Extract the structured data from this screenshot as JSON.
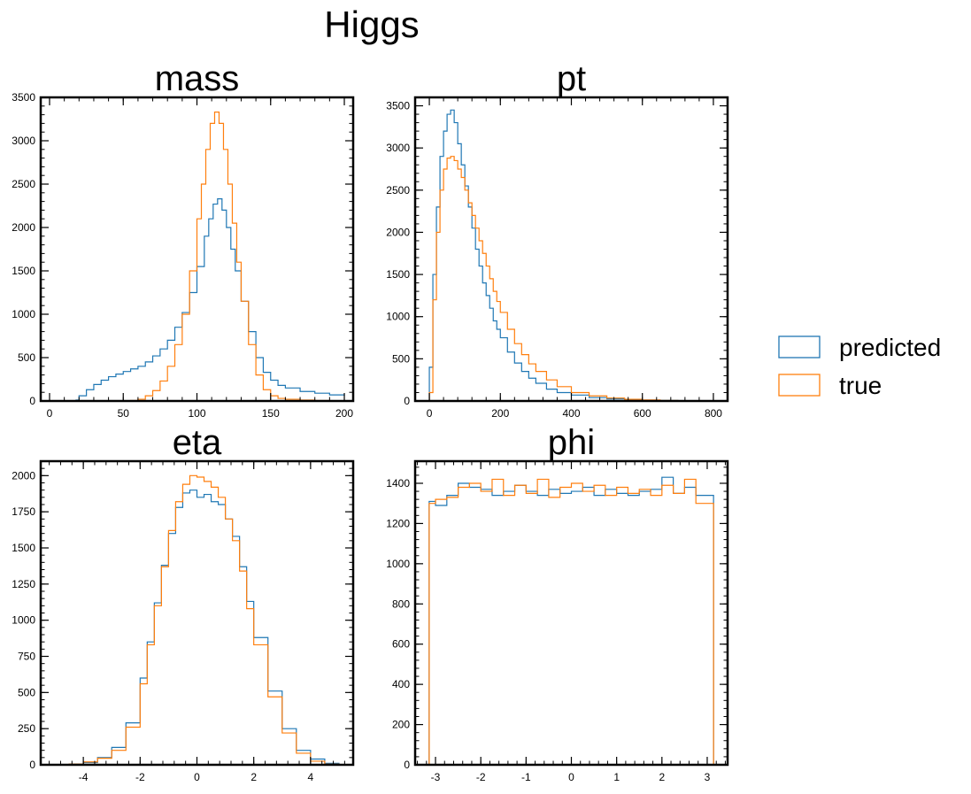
{
  "figure": {
    "title": "Higgs"
  },
  "legend": {
    "placement": "right",
    "entries": [
      {
        "label": "predicted",
        "color": "#1f77b4"
      },
      {
        "label": "true",
        "color": "#ff7f0e"
      }
    ]
  },
  "chart_data": [
    {
      "type": "histogram",
      "title": "mass",
      "xlim": [
        -6,
        206
      ],
      "ylim": [
        0,
        3500
      ],
      "xticks": [
        0,
        50,
        100,
        150,
        200
      ],
      "xtick_labels": [
        "0",
        "50",
        "100",
        "150",
        "200"
      ],
      "yticks": [
        0,
        500,
        1000,
        1500,
        2000,
        2500,
        3000,
        3500
      ],
      "ytick_labels": [
        "0",
        "500",
        "1000",
        "1500",
        "2000",
        "2500",
        "3000",
        "3500"
      ],
      "series": [
        {
          "name": "predicted",
          "color": "#1f77b4",
          "x": [
            0,
            10,
            18,
            20,
            25,
            30,
            35,
            40,
            45,
            50,
            55,
            60,
            65,
            70,
            75,
            80,
            85,
            90,
            95,
            100,
            105,
            108,
            111,
            114,
            117,
            120,
            123,
            126,
            130,
            135,
            140,
            145,
            150,
            155,
            160,
            170,
            180,
            190,
            200
          ],
          "y": [
            0,
            0,
            10,
            60,
            130,
            190,
            240,
            280,
            310,
            340,
            370,
            400,
            450,
            520,
            600,
            700,
            850,
            1020,
            1250,
            1550,
            1900,
            2100,
            2270,
            2330,
            2200,
            2000,
            1750,
            1500,
            1150,
            800,
            500,
            330,
            240,
            180,
            150,
            110,
            90,
            70,
            60
          ]
        },
        {
          "name": "true",
          "color": "#ff7f0e",
          "x": [
            0,
            50,
            55,
            60,
            65,
            70,
            75,
            80,
            85,
            90,
            95,
            100,
            103,
            106,
            109,
            112,
            115,
            118,
            121,
            124,
            127,
            130,
            135,
            140,
            145,
            150,
            155,
            160,
            170,
            180,
            190,
            200
          ],
          "y": [
            0,
            0,
            5,
            20,
            60,
            120,
            230,
            400,
            650,
            1000,
            1500,
            2100,
            2500,
            2900,
            3200,
            3330,
            3200,
            2900,
            2500,
            2050,
            1600,
            1150,
            650,
            300,
            130,
            60,
            30,
            20,
            10,
            5,
            0,
            0
          ]
        }
      ]
    },
    {
      "type": "histogram",
      "title": "pt",
      "xlim": [
        -40,
        840
      ],
      "ylim": [
        0,
        3600
      ],
      "xticks": [
        0,
        200,
        400,
        600,
        800
      ],
      "xtick_labels": [
        "0",
        "200",
        "400",
        "600",
        "800"
      ],
      "yticks": [
        0,
        500,
        1000,
        1500,
        2000,
        2500,
        3000,
        3500
      ],
      "ytick_labels": [
        "0",
        "500",
        "1000",
        "1500",
        "2000",
        "2500",
        "3000",
        "3500"
      ],
      "series": [
        {
          "name": "predicted",
          "color": "#1f77b4",
          "x": [
            0,
            10,
            20,
            30,
            40,
            50,
            60,
            70,
            80,
            90,
            100,
            110,
            120,
            130,
            140,
            150,
            160,
            170,
            180,
            190,
            200,
            220,
            240,
            260,
            280,
            300,
            330,
            360,
            400,
            450,
            500,
            550,
            600,
            650,
            700,
            750,
            800
          ],
          "y": [
            400,
            1500,
            2300,
            2900,
            3200,
            3400,
            3450,
            3300,
            3050,
            2800,
            2550,
            2300,
            2050,
            1800,
            1600,
            1400,
            1250,
            1100,
            950,
            850,
            750,
            580,
            450,
            350,
            270,
            210,
            140,
            100,
            70,
            40,
            25,
            15,
            10,
            5,
            2,
            1,
            0
          ]
        },
        {
          "name": "true",
          "color": "#ff7f0e",
          "x": [
            0,
            10,
            20,
            30,
            40,
            50,
            60,
            70,
            80,
            90,
            100,
            110,
            120,
            130,
            140,
            150,
            160,
            170,
            180,
            190,
            200,
            220,
            240,
            260,
            280,
            300,
            330,
            360,
            400,
            450,
            500,
            550,
            600,
            650,
            700,
            750,
            800
          ],
          "y": [
            100,
            1200,
            2000,
            2500,
            2750,
            2880,
            2900,
            2850,
            2750,
            2650,
            2500,
            2350,
            2200,
            2050,
            1900,
            1750,
            1600,
            1450,
            1300,
            1180,
            1050,
            850,
            680,
            550,
            440,
            350,
            250,
            170,
            100,
            60,
            35,
            20,
            12,
            6,
            3,
            1,
            0
          ]
        }
      ]
    },
    {
      "type": "histogram",
      "title": "eta",
      "xlim": [
        -5.5,
        5.5
      ],
      "ylim": [
        0,
        2100
      ],
      "xticks": [
        -4,
        -2,
        0,
        2,
        4
      ],
      "xtick_labels": [
        "-4",
        "-2",
        "0",
        "2",
        "4"
      ],
      "yticks": [
        0,
        250,
        500,
        750,
        1000,
        1250,
        1500,
        1750,
        2000
      ],
      "ytick_labels": [
        "0",
        "250",
        "500",
        "750",
        "1000",
        "1250",
        "1500",
        "1750",
        "2000"
      ],
      "series": [
        {
          "name": "predicted",
          "color": "#1f77b4",
          "x": [
            -5,
            -4.5,
            -4,
            -3.5,
            -3,
            -2.5,
            -2,
            -1.75,
            -1.5,
            -1.25,
            -1,
            -0.75,
            -0.5,
            -0.25,
            0,
            0.25,
            0.5,
            0.75,
            1,
            1.25,
            1.5,
            1.75,
            2,
            2.5,
            3,
            3.5,
            4,
            4.5,
            5
          ],
          "y": [
            0,
            5,
            15,
            50,
            120,
            290,
            600,
            850,
            1120,
            1380,
            1600,
            1780,
            1880,
            1900,
            1850,
            1870,
            1820,
            1800,
            1700,
            1580,
            1370,
            1130,
            880,
            510,
            250,
            100,
            40,
            10,
            0
          ]
        },
        {
          "name": "true",
          "color": "#ff7f0e",
          "x": [
            -5,
            -4.5,
            -4,
            -3.5,
            -3,
            -2.5,
            -2,
            -1.75,
            -1.5,
            -1.25,
            -1,
            -0.75,
            -0.5,
            -0.25,
            0,
            0.25,
            0.5,
            0.75,
            1,
            1.25,
            1.5,
            1.75,
            2,
            2.5,
            3,
            3.5,
            4,
            4.5,
            5
          ],
          "y": [
            0,
            5,
            20,
            45,
            100,
            260,
            560,
            830,
            1100,
            1370,
            1620,
            1820,
            1940,
            2000,
            1990,
            1960,
            1920,
            1850,
            1700,
            1550,
            1340,
            1080,
            830,
            470,
            220,
            80,
            25,
            5,
            0
          ]
        }
      ]
    },
    {
      "type": "histogram",
      "title": "phi",
      "xlim": [
        -3.45,
        3.45
      ],
      "ylim": [
        0,
        1510
      ],
      "xticks": [
        -3,
        -2,
        -1,
        0,
        1,
        2,
        3
      ],
      "xtick_labels": [
        "-3",
        "-2",
        "-1",
        "0",
        "1",
        "2",
        "3"
      ],
      "yticks": [
        0,
        200,
        400,
        600,
        800,
        1000,
        1200,
        1400
      ],
      "ytick_labels": [
        "0",
        "200",
        "400",
        "600",
        "800",
        "1000",
        "1200",
        "1400"
      ],
      "series": [
        {
          "name": "predicted",
          "color": "#1f77b4",
          "x": [
            -3.14,
            -3,
            -2.75,
            -2.5,
            -2.25,
            -2,
            -1.75,
            -1.5,
            -1.25,
            -1,
            -0.75,
            -0.5,
            -0.25,
            0,
            0.25,
            0.5,
            0.75,
            1,
            1.25,
            1.5,
            1.75,
            2,
            2.25,
            2.5,
            2.75,
            3.14
          ],
          "y": [
            1310,
            1290,
            1340,
            1400,
            1380,
            1370,
            1340,
            1360,
            1390,
            1360,
            1340,
            1370,
            1350,
            1360,
            1380,
            1340,
            1370,
            1350,
            1340,
            1360,
            1370,
            1430,
            1350,
            1380,
            1340,
            0
          ]
        },
        {
          "name": "true",
          "color": "#ff7f0e",
          "x": [
            -3.14,
            -3,
            -2.75,
            -2.5,
            -2.25,
            -2,
            -1.75,
            -1.5,
            -1.25,
            -1,
            -0.75,
            -0.5,
            -0.25,
            0,
            0.25,
            0.5,
            0.75,
            1,
            1.25,
            1.5,
            1.75,
            2,
            2.25,
            2.5,
            2.75,
            3.14
          ],
          "y": [
            1300,
            1320,
            1330,
            1380,
            1400,
            1360,
            1420,
            1340,
            1390,
            1350,
            1420,
            1330,
            1380,
            1400,
            1360,
            1390,
            1340,
            1380,
            1350,
            1370,
            1340,
            1390,
            1350,
            1420,
            1300,
            0
          ]
        }
      ]
    }
  ]
}
